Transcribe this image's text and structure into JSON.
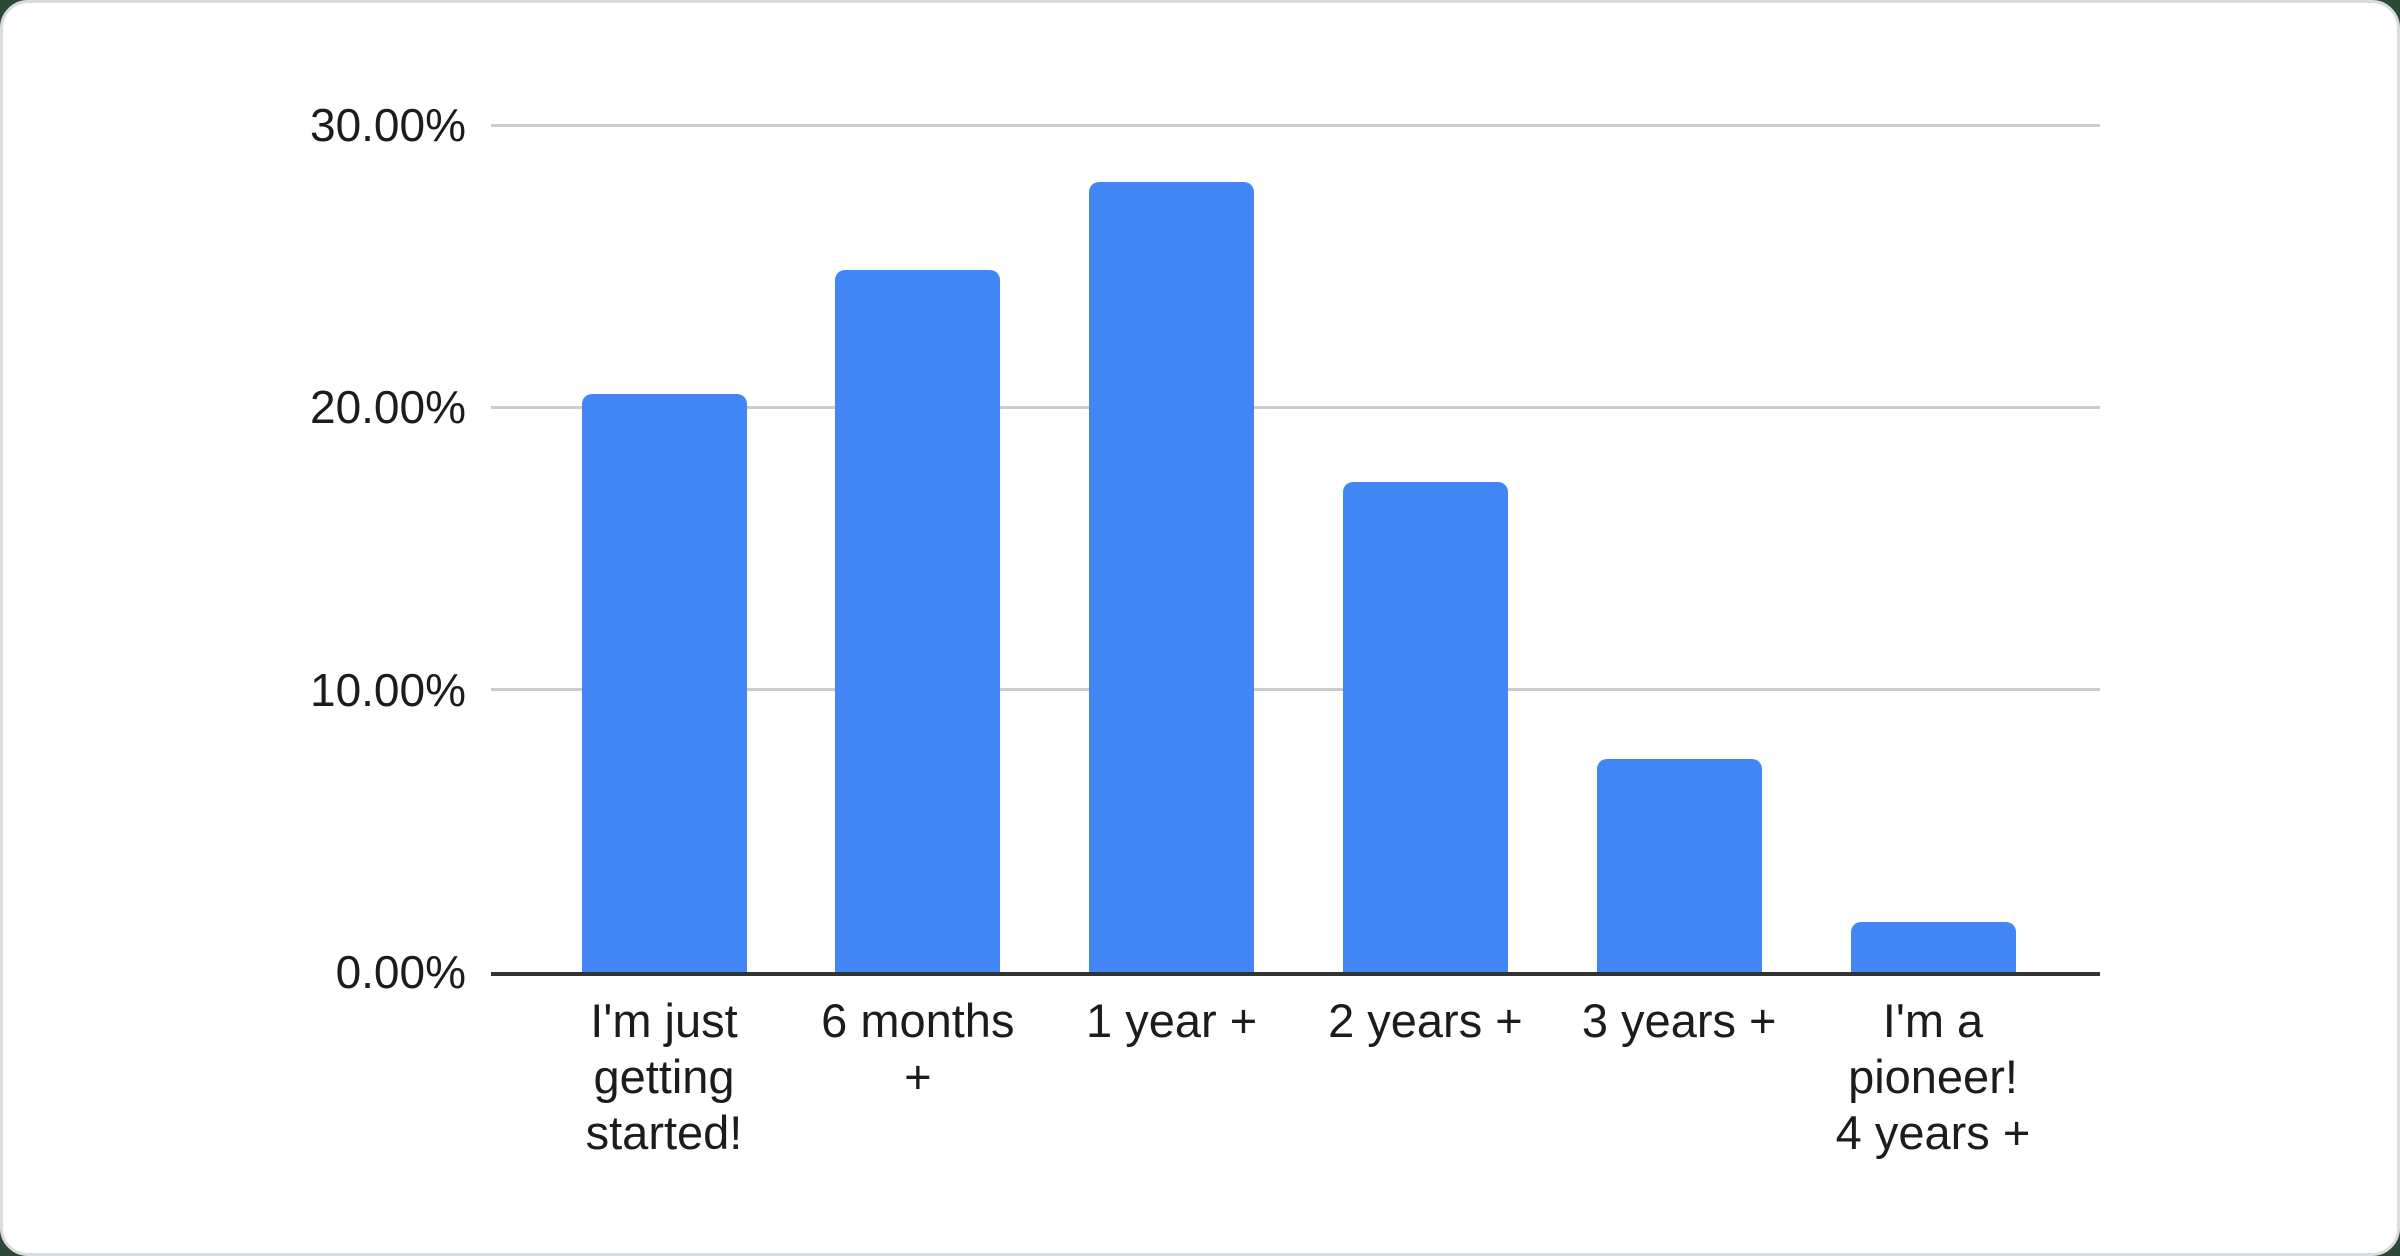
{
  "page": {
    "background_color": "#2e4a36",
    "card_background": "#ffffff",
    "card_border_color": "#d9dcde"
  },
  "chart_data": {
    "type": "bar",
    "title": "",
    "xlabel": "",
    "ylabel": "",
    "categories": [
      "I'm just getting started!",
      "6 months +",
      "1 year +",
      "2 years +",
      "3 years +",
      "I'm a pioneer! 4 years +"
    ],
    "category_display": [
      "I'm just\ngetting\nstarted!",
      "6 months\n+",
      "1 year +",
      "2 years +",
      "3 years +",
      "I'm a\npioneer!\n4 years +"
    ],
    "values": [
      20.47,
      24.87,
      27.98,
      17.36,
      7.54,
      1.77
    ],
    "unit": "%",
    "ylim": [
      0,
      30
    ],
    "yticks": [
      {
        "label": "30.00%",
        "value": 30
      },
      {
        "label": "20.00%",
        "value": 20
      },
      {
        "label": "10.00%",
        "value": 10
      },
      {
        "label": "0.00%",
        "value": 0
      }
    ],
    "grid": true,
    "legend": "none",
    "colors": {
      "bar": "#4285f4",
      "gridline": "#cccccc",
      "baseline": "#333333",
      "text": "#1c1c1c"
    }
  }
}
